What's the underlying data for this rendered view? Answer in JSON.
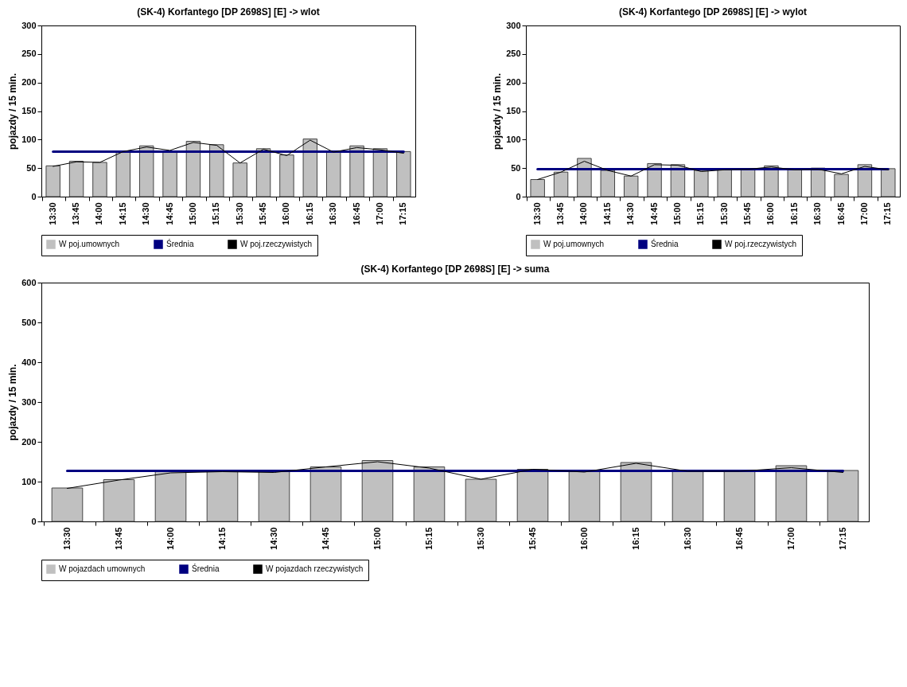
{
  "chart_data": [
    {
      "type": "bar",
      "title": "(SK-4) Korfantego [DP 2698S] [E] -> wlot",
      "ylabel": "pojazdy / 15 min.",
      "categories": [
        "13:30",
        "13:45",
        "14:00",
        "14:15",
        "14:30",
        "14:45",
        "15:00",
        "15:15",
        "15:30",
        "15:45",
        "16:00",
        "16:15",
        "16:30",
        "16:45",
        "17:00",
        "17:15"
      ],
      "ylim": [
        0,
        300
      ],
      "yticks": [
        0,
        50,
        100,
        150,
        200,
        250,
        300
      ],
      "grid": false,
      "legend": "bottom",
      "series": [
        {
          "name": "W poj.umownych",
          "color": "#c0c0c0",
          "values": [
            54,
            62,
            60,
            79,
            89,
            79,
            97,
            91,
            59,
            84,
            73,
            101,
            79,
            89,
            84,
            79
          ]
        },
        {
          "name": "Średnia",
          "type": "line",
          "color": "#000080",
          "values": [
            79,
            79,
            79,
            79,
            79,
            79,
            79,
            79,
            79,
            79,
            79,
            79,
            79,
            79,
            79,
            79
          ]
        },
        {
          "name": "W poj.rzeczywistych",
          "type": "line",
          "color": "#000000",
          "values": [
            53,
            61,
            60,
            79,
            87,
            81,
            95,
            90,
            59,
            83,
            72,
            99,
            78,
            86,
            82,
            76
          ]
        }
      ]
    },
    {
      "type": "bar",
      "title": "(SK-4) Korfantego [DP 2698S] [E] -> wylot",
      "ylabel": "pojazdy / 15 min.",
      "categories": [
        "13:30",
        "13:45",
        "14:00",
        "14:15",
        "14:30",
        "14:45",
        "15:00",
        "15:15",
        "15:30",
        "15:45",
        "16:00",
        "16:15",
        "16:30",
        "16:45",
        "17:00",
        "17:15"
      ],
      "ylim": [
        0,
        300
      ],
      "yticks": [
        0,
        50,
        100,
        150,
        200,
        250,
        300
      ],
      "grid": false,
      "legend": "bottom",
      "series": [
        {
          "name": "W poj.umownych",
          "color": "#c0c0c0",
          "values": [
            30,
            43,
            67,
            46,
            36,
            58,
            56,
            46,
            47,
            47,
            54,
            47,
            50,
            39,
            56,
            49
          ]
        },
        {
          "name": "Średnia",
          "type": "line",
          "color": "#000080",
          "values": [
            48,
            48,
            48,
            48,
            48,
            48,
            48,
            48,
            48,
            48,
            48,
            48,
            48,
            48,
            48,
            48
          ]
        },
        {
          "name": "W poj.rzeczywistych",
          "type": "line",
          "color": "#000000",
          "values": [
            30,
            43,
            62,
            46,
            36,
            56,
            55,
            44,
            47,
            48,
            52,
            47,
            48,
            40,
            53,
            47
          ]
        }
      ]
    },
    {
      "type": "bar",
      "title": "(SK-4) Korfantego [DP 2698S] [E] -> suma",
      "ylabel": "pojazdy / 15 min.",
      "categories": [
        "13:30",
        "13:45",
        "14:00",
        "14:15",
        "14:30",
        "14:45",
        "15:00",
        "15:15",
        "15:30",
        "15:45",
        "16:00",
        "16:15",
        "16:30",
        "16:45",
        "17:00",
        "17:15"
      ],
      "ylim": [
        0,
        600
      ],
      "yticks": [
        0,
        100,
        200,
        300,
        400,
        500,
        600
      ],
      "grid": false,
      "legend": "bottom",
      "series": [
        {
          "name": "W pojazdach umownych",
          "color": "#c0c0c0",
          "values": [
            84,
            105,
            127,
            125,
            125,
            137,
            153,
            137,
            106,
            131,
            127,
            148,
            129,
            128,
            140,
            128
          ]
        },
        {
          "name": "Średnia",
          "type": "line",
          "color": "#000080",
          "values": [
            127,
            127,
            127,
            127,
            127,
            127,
            127,
            127,
            127,
            127,
            127,
            127,
            127,
            127,
            127,
            127
          ]
        },
        {
          "name": "W pojazdach rzeczywistych",
          "type": "line",
          "color": "#000000",
          "values": [
            83,
            104,
            122,
            125,
            123,
            137,
            150,
            134,
            106,
            131,
            124,
            146,
            126,
            126,
            135,
            123
          ]
        }
      ]
    }
  ]
}
